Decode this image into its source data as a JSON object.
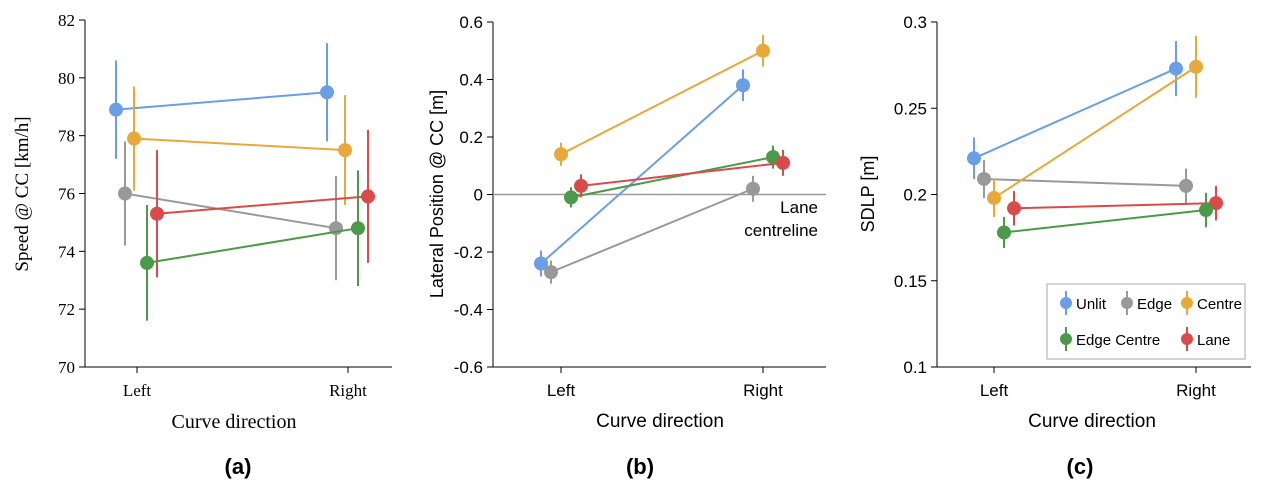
{
  "colors": {
    "Unlit": "#6a9ee6",
    "Edge": "#999999",
    "Centre": "#e8a83a",
    "Edge Centre": "#4a9a4a",
    "Lane": "#d94b4b",
    "refline": "#999999"
  },
  "legend": {
    "items": [
      "Unlit",
      "Edge",
      "Centre",
      "Edge Centre",
      "Lane"
    ]
  },
  "chart_data": [
    {
      "type": "scatter",
      "panel_label": "(a)",
      "font": "serif",
      "xlabel": "Curve direction",
      "ylabel": "Speed @ CC [km/h]",
      "categories": [
        "Left",
        "Right"
      ],
      "ylim": [
        70,
        82
      ],
      "yticks": [
        70,
        72,
        74,
        76,
        78,
        80,
        82
      ],
      "ytick_labels": [
        "70",
        "72",
        "74",
        "76",
        "78",
        "80",
        "82"
      ],
      "series": [
        {
          "name": "Unlit",
          "values": [
            78.9,
            79.5
          ],
          "err": [
            1.7,
            1.7
          ]
        },
        {
          "name": "Centre",
          "values": [
            77.9,
            77.5
          ],
          "err": [
            1.8,
            1.9
          ]
        },
        {
          "name": "Edge",
          "values": [
            76.0,
            74.8
          ],
          "err": [
            1.8,
            1.8
          ]
        },
        {
          "name": "Lane",
          "values": [
            75.3,
            75.9
          ],
          "err": [
            2.2,
            2.3
          ]
        },
        {
          "name": "Edge Centre",
          "values": [
            73.6,
            74.8
          ],
          "err": [
            2.0,
            2.0
          ]
        }
      ]
    },
    {
      "type": "scatter",
      "panel_label": "(b)",
      "font": "sans",
      "xlabel": "Curve direction",
      "ylabel": "Lateral Position @ CC [m]",
      "categories": [
        "Left",
        "Right"
      ],
      "ylim": [
        -0.6,
        0.6
      ],
      "yticks": [
        -0.6,
        -0.4,
        -0.2,
        0,
        0.2,
        0.4,
        0.6
      ],
      "ytick_labels": [
        "-0.6",
        "-0.4",
        "-0.2",
        "0",
        "0.2",
        "0.4",
        "0.6"
      ],
      "refline": 0,
      "annotation": [
        "Lane",
        "centreline"
      ],
      "series": [
        {
          "name": "Unlit",
          "values": [
            -0.24,
            0.38
          ],
          "err": [
            0.045,
            0.055
          ]
        },
        {
          "name": "Edge",
          "values": [
            -0.27,
            0.02
          ],
          "err": [
            0.04,
            0.045
          ]
        },
        {
          "name": "Centre",
          "values": [
            0.14,
            0.5
          ],
          "err": [
            0.04,
            0.055
          ]
        },
        {
          "name": "Edge Centre",
          "values": [
            -0.01,
            0.13
          ],
          "err": [
            0.035,
            0.04
          ]
        },
        {
          "name": "Lane",
          "values": [
            0.03,
            0.11
          ],
          "err": [
            0.04,
            0.045
          ]
        }
      ]
    },
    {
      "type": "scatter",
      "panel_label": "(c)",
      "font": "sans",
      "xlabel": "Curve direction",
      "ylabel": "SDLP [m]",
      "categories": [
        "Left",
        "Right"
      ],
      "ylim": [
        0.1,
        0.3
      ],
      "yticks": [
        0.1,
        0.15,
        0.2,
        0.25,
        0.3
      ],
      "ytick_labels": [
        "0.1",
        "0.15",
        "0.2",
        "0.25",
        "0.3"
      ],
      "series": [
        {
          "name": "Unlit",
          "values": [
            0.221,
            0.273
          ],
          "err": [
            0.012,
            0.016
          ]
        },
        {
          "name": "Edge",
          "values": [
            0.209,
            0.205
          ],
          "err": [
            0.011,
            0.01
          ]
        },
        {
          "name": "Centre",
          "values": [
            0.198,
            0.274
          ],
          "err": [
            0.011,
            0.018
          ]
        },
        {
          "name": "Lane",
          "values": [
            0.192,
            0.195
          ],
          "err": [
            0.01,
            0.01
          ]
        },
        {
          "name": "Edge Centre",
          "values": [
            0.178,
            0.191
          ],
          "err": [
            0.009,
            0.01
          ]
        }
      ],
      "legend_placement": "bottom-right"
    }
  ]
}
